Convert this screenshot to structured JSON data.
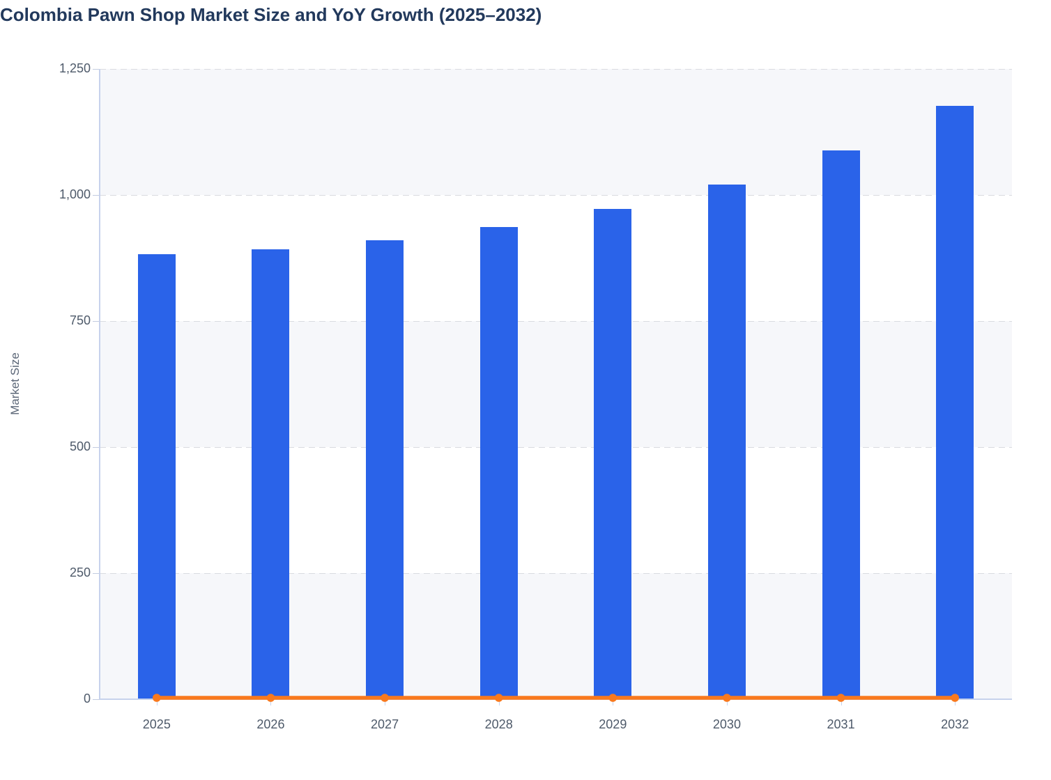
{
  "title": "Colombia Pawn Shop Market Size and YoY Growth (2025–2032)",
  "colors": {
    "bar_blue": "#2a63e9",
    "line_orange": "#f9791d",
    "band_fill": "#f6f7fa",
    "gridline": "#d9dbe0",
    "axis_line": "#c7d2ec",
    "tick_text": "#4e5a6a",
    "title_text": "#22395c",
    "y_axis_title_text": "#5a6576"
  },
  "chart_data": {
    "type": "bar",
    "title": "Colombia Pawn Shop Market Size and YoY Growth (2025–2032)",
    "categories": [
      "2025",
      "2026",
      "2027",
      "2028",
      "2029",
      "2030",
      "2031",
      "2032"
    ],
    "series": [
      {
        "name": "Market Size",
        "type": "bar",
        "color": "#2a63e9",
        "values": [
          882,
          892,
          910,
          936,
          972,
          1021,
          1088,
          1177
        ]
      },
      {
        "name": "YoY Growth",
        "type": "line",
        "color": "#f9791d",
        "values": [
          0,
          0,
          0,
          0,
          0,
          0,
          0,
          0
        ],
        "note": "line renders flat at ~0 on the shared Market Size axis, with a round marker at every year"
      }
    ],
    "xlabel": "",
    "ylabel": "Market Size",
    "ylim": [
      0,
      1250
    ],
    "yticks": [
      0,
      250,
      500,
      750,
      1000,
      1250
    ],
    "ytick_labels": [
      "0",
      "250",
      "500",
      "750",
      "1,000",
      "1,250"
    ],
    "grid": "horizontal dashed gridlines",
    "plot_bands": "alternating horizontal row shading between gridlines, shaded from top band down",
    "legend": "none"
  }
}
